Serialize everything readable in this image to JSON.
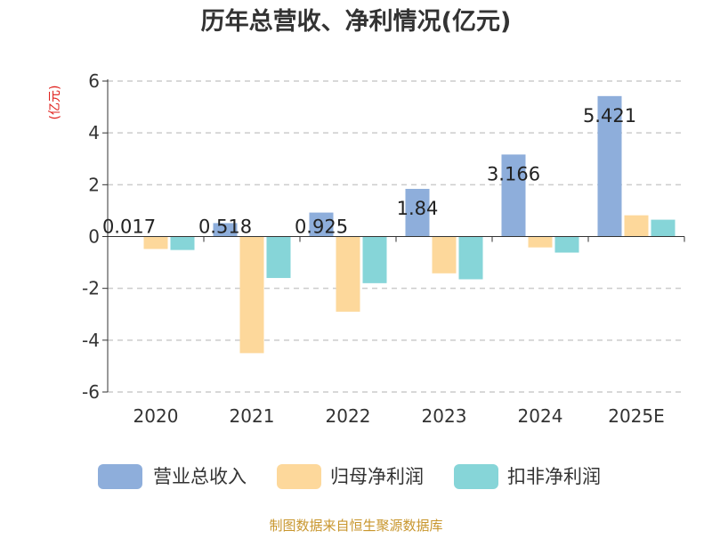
{
  "chart_data": {
    "type": "bar",
    "title": "历年总营收、净利情况(亿元)",
    "unit_label": "(亿元)",
    "categories": [
      "2020",
      "2021",
      "2022",
      "2023",
      "2024",
      "2025E"
    ],
    "ylim": [
      -6,
      6
    ],
    "yticks": [
      "6",
      "4",
      "2",
      "0",
      "-2",
      "-4",
      "-6"
    ],
    "ytick_values": [
      6,
      4,
      2,
      0,
      -2,
      -4,
      -6
    ],
    "grid": true,
    "legend_position": "bottom",
    "series": [
      {
        "name": "营业总收入",
        "color": "#8eaedb",
        "values": [
          0.017,
          0.518,
          0.925,
          1.84,
          3.166,
          5.421
        ],
        "labels": [
          "0.017",
          "0.518",
          "0.925",
          "1.84",
          "3.166",
          "5.421"
        ]
      },
      {
        "name": "归母净利润",
        "color": "#fdd89b",
        "values": [
          -0.48,
          -4.5,
          -2.9,
          -1.42,
          -0.42,
          0.82
        ]
      },
      {
        "name": "扣非净利润",
        "color": "#86d5d8",
        "values": [
          -0.52,
          -1.6,
          -1.8,
          -1.65,
          -0.62,
          0.65
        ]
      }
    ],
    "source": "制图数据来自恒生聚源数据库"
  }
}
